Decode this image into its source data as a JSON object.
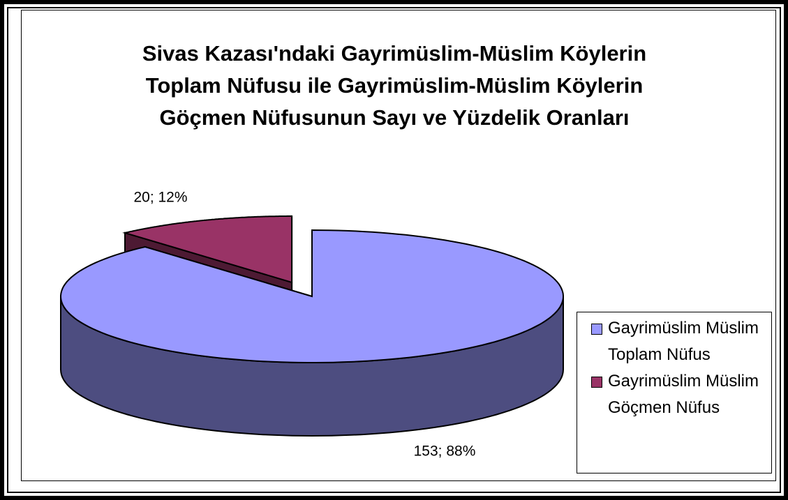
{
  "chart_data": {
    "type": "pie",
    "title": [
      "Sivas Kazası'ndaki Gayrimüslim-Müslim Köylerin",
      "Toplam Nüfusu ile Gayrimüslim-Müslim Köylerin",
      "Göçmen Nüfusunun Sayı ve Yüzdelik Oranları"
    ],
    "categories": [
      "Gayrimüslim Müslim Toplam Nüfus",
      "Gayrimüslim Müslim Göçmen Nüfus"
    ],
    "values": [
      153,
      20
    ],
    "value_labels": [
      "153; 88%",
      "20; 12%"
    ],
    "colors": [
      "#9999ff",
      "#993366"
    ],
    "legend": "right"
  }
}
